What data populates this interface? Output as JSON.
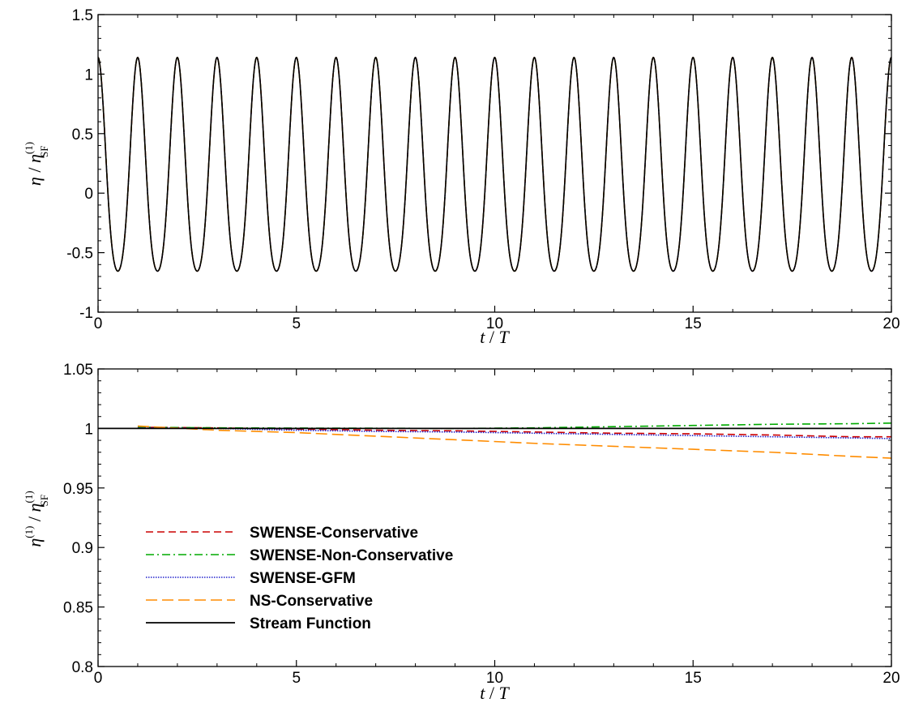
{
  "chart_data": [
    {
      "type": "line",
      "xlabel": "t / T",
      "ylabel": "η / η(1)SF",
      "xlim": [
        0,
        20
      ],
      "ylim": [
        -1,
        1.5
      ],
      "xticks": [
        "0",
        "5",
        "10",
        "15",
        "20"
      ],
      "yticks": [
        "-1",
        "-0.5",
        "0",
        "0.5",
        "1",
        "1.5"
      ],
      "wave": {
        "period": 1.0,
        "crest": 1.14,
        "trough": -0.9,
        "t_start": 0,
        "t_end": 20
      },
      "series": [
        {
          "name": "SWENSE-Conservative",
          "color": "#cc0000",
          "style": "dashed"
        },
        {
          "name": "SWENSE-Non-Conservative",
          "color": "#00aa00",
          "style": "dashdot"
        },
        {
          "name": "SWENSE-GFM",
          "color": "#2222cc",
          "style": "dotted"
        },
        {
          "name": "NS-Conservative",
          "color": "#ff8c00",
          "style": "longdash"
        },
        {
          "name": "Stream Function",
          "color": "#000000",
          "style": "solid"
        }
      ]
    },
    {
      "type": "line",
      "xlabel": "t / T",
      "ylabel": "η(1) / η(1)SF",
      "xlim": [
        0,
        20
      ],
      "ylim": [
        0.8,
        1.05
      ],
      "xticks": [
        "0",
        "5",
        "10",
        "15",
        "20"
      ],
      "yticks": [
        "0.8",
        "0.85",
        "0.9",
        "0.95",
        "1",
        "1.05"
      ],
      "legend": "lower-left",
      "series": [
        {
          "name": "SWENSE-Conservative",
          "color": "#cc0000",
          "style": "dashed",
          "x": [
            1,
            3,
            5,
            7,
            9,
            11,
            13,
            15,
            17,
            19,
            20
          ],
          "y": [
            1.001,
            1.0005,
            0.9995,
            0.9985,
            0.998,
            0.997,
            0.996,
            0.9955,
            0.9945,
            0.993,
            0.993
          ]
        },
        {
          "name": "SWENSE-Non-Conservative",
          "color": "#00aa00",
          "style": "dashdot",
          "x": [
            1,
            3,
            5,
            7,
            9,
            11,
            13,
            15,
            17,
            19,
            20
          ],
          "y": [
            1.001,
            1.0005,
            1.0003,
            1.0002,
            1.0,
            1.0005,
            1.0015,
            1.0025,
            1.0035,
            1.004,
            1.0045
          ]
        },
        {
          "name": "SWENSE-GFM",
          "color": "#2222cc",
          "style": "dotted",
          "x": [
            1,
            3,
            5,
            7,
            9,
            11,
            13,
            15,
            17,
            19,
            20
          ],
          "y": [
            1.0005,
            1.0,
            0.9985,
            0.9975,
            0.997,
            0.996,
            0.995,
            0.994,
            0.993,
            0.992,
            0.9915
          ]
        },
        {
          "name": "NS-Conservative",
          "color": "#ff8c00",
          "style": "longdash",
          "x": [
            1,
            3,
            5,
            7,
            9,
            11,
            13,
            15,
            17,
            19,
            20
          ],
          "y": [
            1.002,
            0.9985,
            0.9965,
            0.9935,
            0.9905,
            0.9875,
            0.985,
            0.9825,
            0.98,
            0.9765,
            0.975
          ]
        },
        {
          "name": "Stream Function",
          "color": "#000000",
          "style": "solid",
          "x": [
            0,
            20
          ],
          "y": [
            1.0,
            1.0
          ]
        }
      ]
    }
  ]
}
